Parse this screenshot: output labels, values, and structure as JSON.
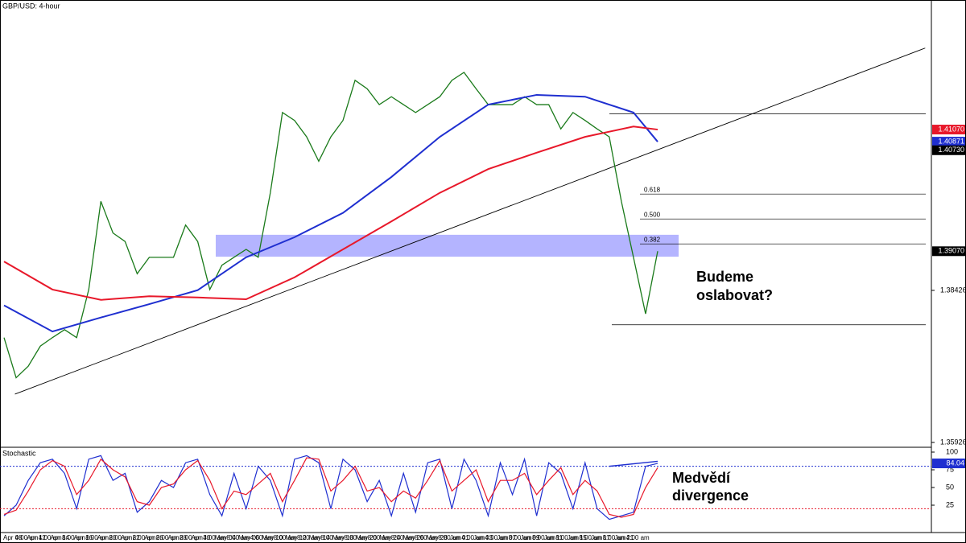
{
  "chart_data": {
    "type": "line",
    "title": "GBP/USD: 4-hour",
    "x_labels": [
      "Apr 08",
      "4:00 am",
      "Apr 12",
      "4:00 am",
      "Apr 14",
      "8:00 am",
      "Apr 16",
      "8:00 am",
      "Apr 20",
      "8:00 am",
      "Apr 22",
      "8:00 am",
      "Apr 26",
      "8:00 am",
      "Apr 28",
      "8:00 am",
      "Apr 30",
      "4:00 am",
      "May 04",
      "8:00 am",
      "May 06",
      "4:00 am",
      "May 10",
      "8:00 am",
      "May 12",
      "8:00 am",
      "May 14",
      "8:00 am",
      "May 18",
      "8:00 am",
      "May 20",
      "8:00 am",
      "May 24",
      "8:00 am",
      "May 26",
      "8:00 am",
      "May 28",
      "8:00 am",
      "Jun 01",
      "4:00 am",
      "Jun 03",
      "4:00 am",
      "Jun 07",
      "8:00 am",
      "Jun 09",
      "8:00 am",
      "Jun 11",
      "8:00 am",
      "Jun 15",
      "8:00 am",
      "Jun 17",
      "8:00 am",
      "Jun 21",
      "4:00 am"
    ],
    "xlim": [
      0,
      54
    ],
    "ylim": [
      1.3586,
      1.432
    ],
    "yticks": [
      1.38426,
      1.35926
    ],
    "price_labels": [
      {
        "value": 1.4107,
        "label": "1.41070",
        "color": "#e8182a"
      },
      {
        "value": 1.40871,
        "label": "1.40871",
        "color": "#1f2fd0"
      },
      {
        "value": 1.4073,
        "label": "1.40730",
        "color": "#000000"
      },
      {
        "value": 1.3907,
        "label": "1.39070",
        "color": "#000000"
      }
    ],
    "series": [
      {
        "color": "#1a7a1a",
        "x": [
          0,
          1,
          2,
          3,
          4,
          5,
          6,
          7,
          8,
          9,
          10,
          11,
          12,
          13,
          14,
          15,
          16,
          17,
          18,
          19,
          20,
          21,
          22,
          23,
          24,
          25,
          26,
          27,
          28,
          29,
          30,
          31,
          32,
          33,
          34,
          35,
          36,
          37,
          38,
          39,
          40,
          41,
          42,
          43,
          44,
          45,
          46,
          47,
          48,
          49,
          50,
          51,
          52,
          53,
          54
        ],
        "values": [
          1.3765,
          1.3699,
          1.3718,
          1.3751,
          1.3765,
          1.3778,
          1.3765,
          1.3844,
          1.3989,
          1.3937,
          1.3923,
          1.387,
          1.3897,
          1.3897,
          1.3897,
          1.395,
          1.3923,
          1.3844,
          1.3884,
          1.3897,
          1.391,
          1.3897,
          1.4003,
          1.4135,
          1.4122,
          1.4095,
          1.4055,
          1.4095,
          1.4122,
          1.4188,
          1.4174,
          1.4148,
          1.4161,
          1.4148,
          1.4135,
          1.4148,
          1.4161,
          1.4188,
          1.4201,
          1.4174,
          1.4148,
          1.4148,
          1.4148,
          1.4161,
          1.4148,
          1.4148,
          1.4108,
          1.4135,
          1.4122,
          1.4108,
          1.4095,
          1.3989,
          1.3897,
          1.3804,
          1.3907
        ]
      },
      {
        "color": "#1f2fd0",
        "x": [
          0,
          4,
          8,
          12,
          16,
          20,
          24,
          28,
          32,
          36,
          40,
          44,
          48,
          52,
          54
        ],
        "values": [
          1.3818,
          1.3775,
          1.3798,
          1.382,
          1.3843,
          1.3897,
          1.393,
          1.397,
          1.4029,
          1.4095,
          1.4148,
          1.4164,
          1.4161,
          1.4135,
          1.4087
        ]
      },
      {
        "color": "#e8182a",
        "x": [
          0,
          4,
          8,
          12,
          16,
          20,
          24,
          28,
          32,
          36,
          40,
          44,
          48,
          52,
          54
        ],
        "values": [
          1.389,
          1.3844,
          1.3827,
          1.3833,
          1.3831,
          1.3828,
          1.3864,
          1.391,
          1.3956,
          1.4003,
          1.4042,
          1.4069,
          1.4095,
          1.4112,
          1.4107
        ]
      }
    ],
    "trendline": {
      "x": [
        0.9,
        76.1
      ],
      "values": [
        1.3672,
        1.4241
      ]
    },
    "zone": [
      1.3934,
      1.3898
    ],
    "swing_levels": [
      1.4133,
      1.3786
    ],
    "fib_levels": [
      {
        "label": "0.618",
        "value": 1.4001
      },
      {
        "label": "0.500",
        "value": 1.396
      },
      {
        "label": "0.382",
        "value": 1.3919
      }
    ],
    "annotation_1": [
      "Budeme",
      "oslabovat?"
    ],
    "annotation_2": [
      "Medvědí",
      "divergence"
    ],
    "stochastic": {
      "title": "Stochastic",
      "ylim": [
        0,
        100
      ],
      "yticks": [
        100,
        75,
        50,
        25
      ],
      "levels": [
        {
          "value": 80,
          "color": "#1f2fd0"
        },
        {
          "value": 20,
          "color": "#e8182a"
        }
      ],
      "value_label": {
        "value": 84.04,
        "label": "84.04"
      },
      "divergence": {
        "x": [
          50,
          54
        ],
        "values": [
          80,
          87
        ]
      },
      "series": [
        {
          "color": "#1f2fd0",
          "values": [
            10,
            25,
            60,
            85,
            90,
            70,
            20,
            90,
            95,
            60,
            70,
            15,
            30,
            60,
            50,
            85,
            90,
            40,
            10,
            70,
            20,
            80,
            60,
            10,
            90,
            95,
            85,
            20,
            90,
            75,
            30,
            60,
            10,
            70,
            15,
            85,
            90,
            20,
            90,
            60,
            10,
            85,
            40,
            90,
            10,
            85,
            70,
            20,
            85,
            20,
            5,
            10,
            15,
            80,
            84.04
          ]
        },
        {
          "color": "#e8182a",
          "values": [
            12,
            18,
            45,
            75,
            88,
            80,
            40,
            60,
            90,
            75,
            65,
            30,
            25,
            50,
            55,
            75,
            88,
            60,
            20,
            45,
            40,
            55,
            70,
            30,
            60,
            92,
            90,
            45,
            60,
            80,
            45,
            50,
            30,
            45,
            35,
            60,
            88,
            45,
            60,
            75,
            30,
            60,
            60,
            70,
            40,
            60,
            78,
            40,
            60,
            45,
            12,
            8,
            12,
            50,
            78
          ]
        }
      ]
    }
  }
}
